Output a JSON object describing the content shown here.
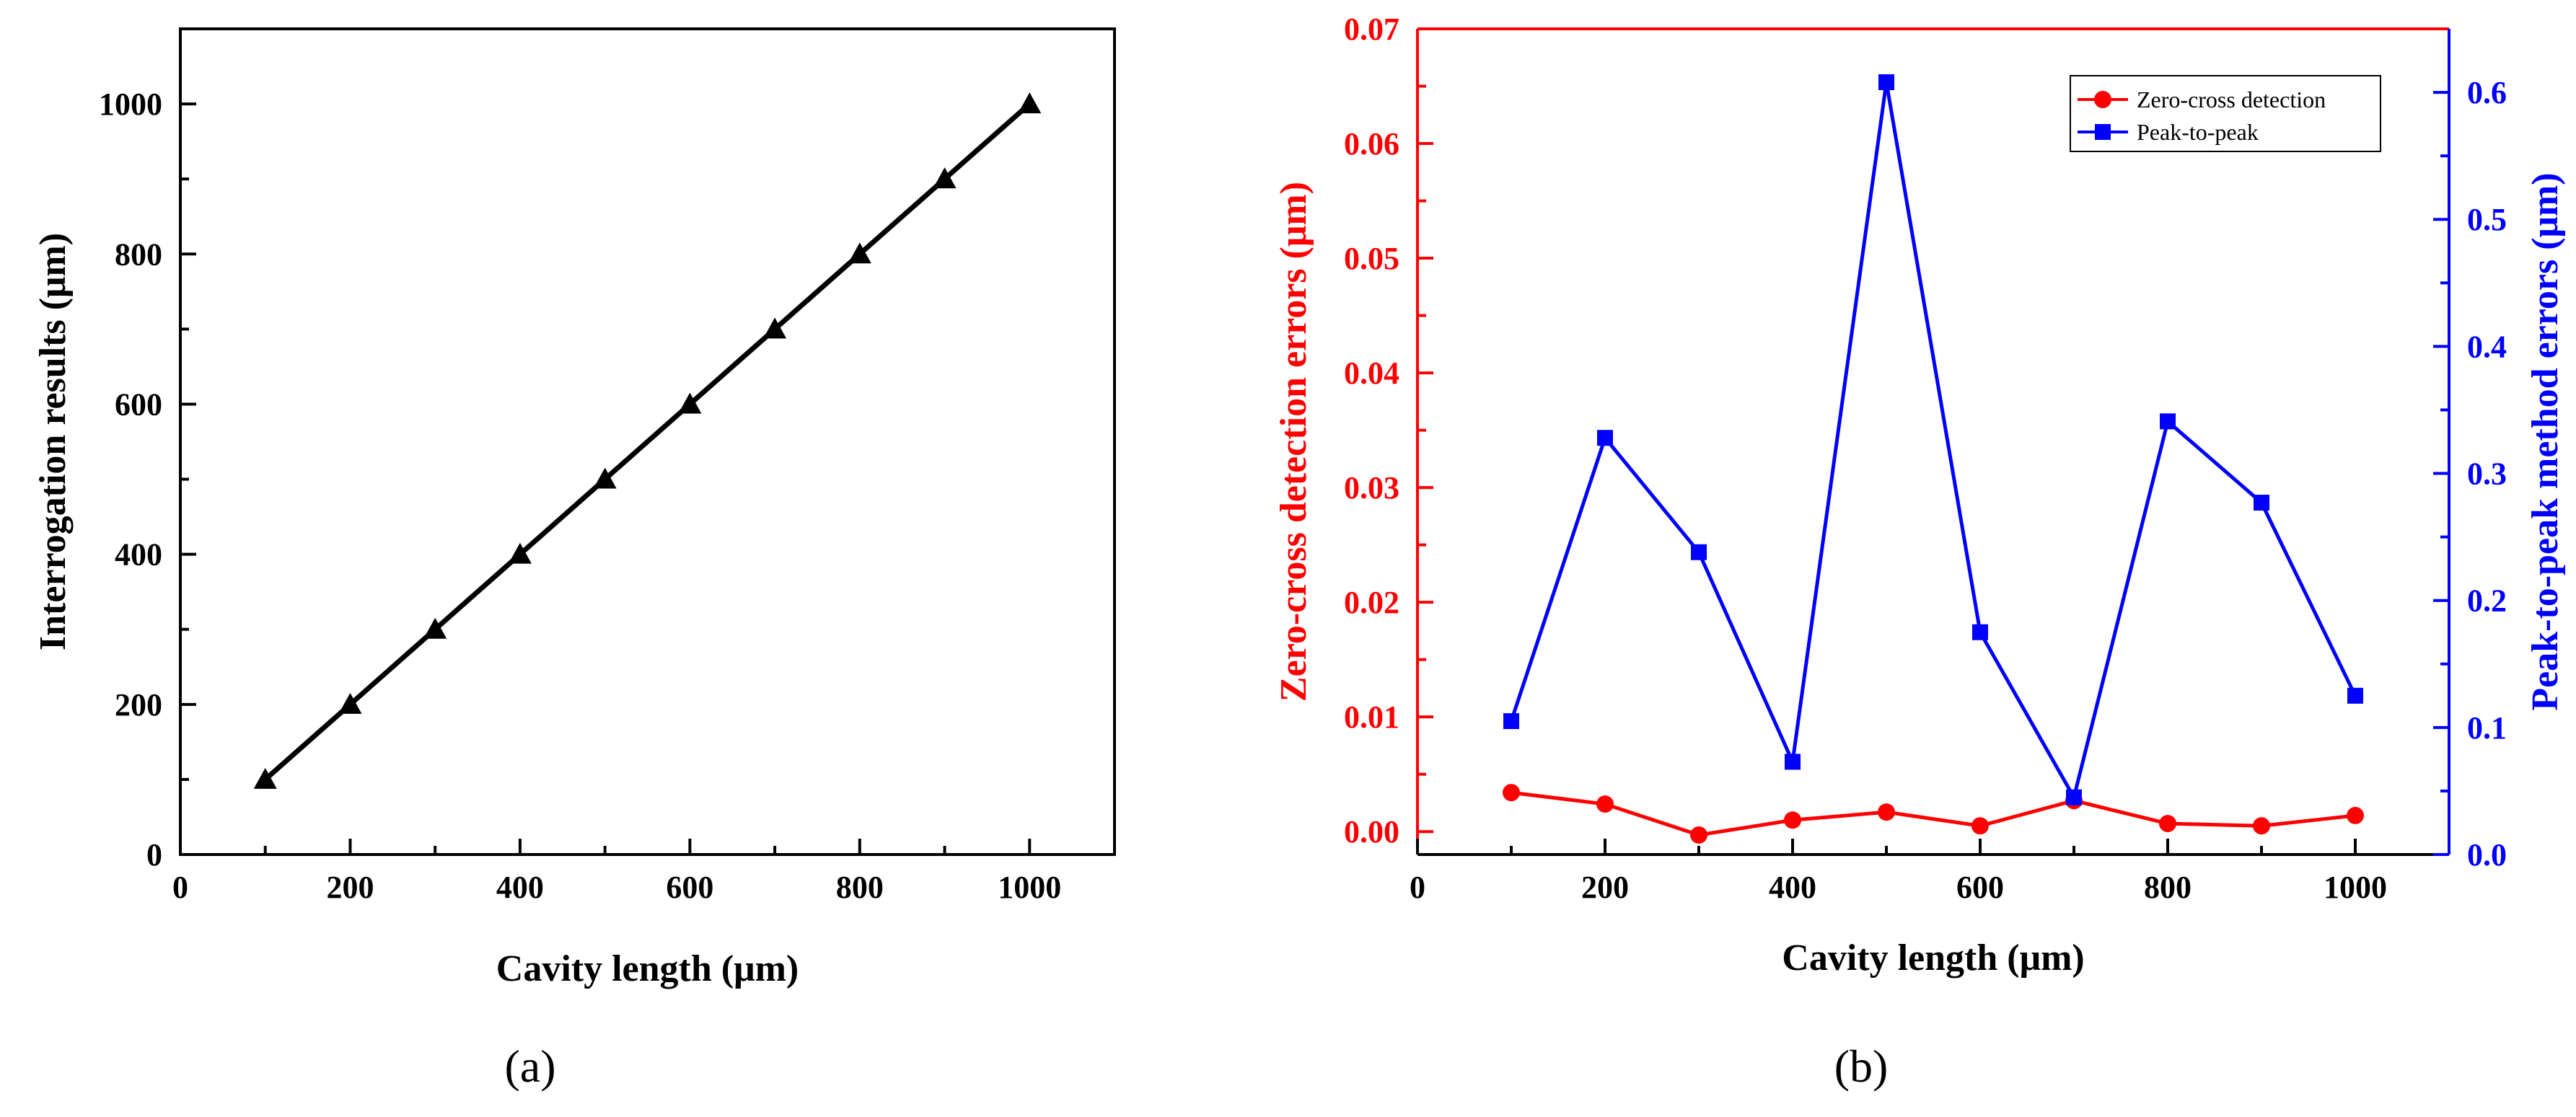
{
  "chart_data": [
    {
      "panel_label": "(a)",
      "type": "line",
      "title": "",
      "xlabel": "Cavity length (μm)",
      "ylabel": "Interrogation results (μm)",
      "xlim": [
        0,
        1100
      ],
      "ylim": [
        0,
        1100
      ],
      "xticks": [
        0,
        200,
        400,
        600,
        800,
        1000
      ],
      "yticks": [
        0,
        200,
        400,
        600,
        800,
        1000
      ],
      "grid": false,
      "series": [
        {
          "name": "Interrogation results",
          "color": "#000000",
          "marker": "triangle",
          "x": [
            100,
            200,
            300,
            400,
            500,
            600,
            700,
            800,
            900,
            1000
          ],
          "y": [
            100,
            200,
            300,
            400,
            500,
            600,
            700,
            800,
            900,
            1000
          ]
        }
      ]
    },
    {
      "panel_label": "(b)",
      "type": "line",
      "title": "",
      "xlabel": "Cavity length (μm)",
      "ylabel_left": "Zero-cross detection errors (μm)",
      "ylabel_right": "Peak-to-peak method errors (μm)",
      "xlim": [
        0,
        1100
      ],
      "ylim_left": [
        -0.002,
        0.07
      ],
      "ylim_right": [
        0,
        0.65
      ],
      "xticks": [
        0,
        200,
        400,
        600,
        800,
        1000
      ],
      "yticks_left": [
        "0.00",
        "0.01",
        "0.02",
        "0.03",
        "0.04",
        "0.05",
        "0.06",
        "0.07"
      ],
      "yticks_right": [
        "0.0",
        "0.1",
        "0.2",
        "0.3",
        "0.4",
        "0.5",
        "0.6"
      ],
      "left_axis_color": "#ff0000",
      "right_axis_color": "#0000ff",
      "grid": false,
      "legend_position": "top-right",
      "series": [
        {
          "name": "Zero-cross detection",
          "axis": "left",
          "color": "#ff0000",
          "marker": "circle",
          "x": [
            100,
            200,
            300,
            400,
            500,
            600,
            700,
            800,
            900,
            1000
          ],
          "y": [
            0.0034,
            0.0024,
            -0.0003,
            0.001,
            0.0017,
            0.0005,
            0.0027,
            0.0007,
            0.0005,
            0.0014
          ]
        },
        {
          "name": "Peak-to-peak",
          "axis": "right",
          "color": "#0000ff",
          "marker": "square",
          "x": [
            100,
            200,
            300,
            400,
            500,
            600,
            700,
            800,
            900,
            1000
          ],
          "y": [
            0.105,
            0.328,
            0.238,
            0.073,
            0.608,
            0.175,
            0.045,
            0.341,
            0.277,
            0.125
          ]
        }
      ]
    }
  ]
}
